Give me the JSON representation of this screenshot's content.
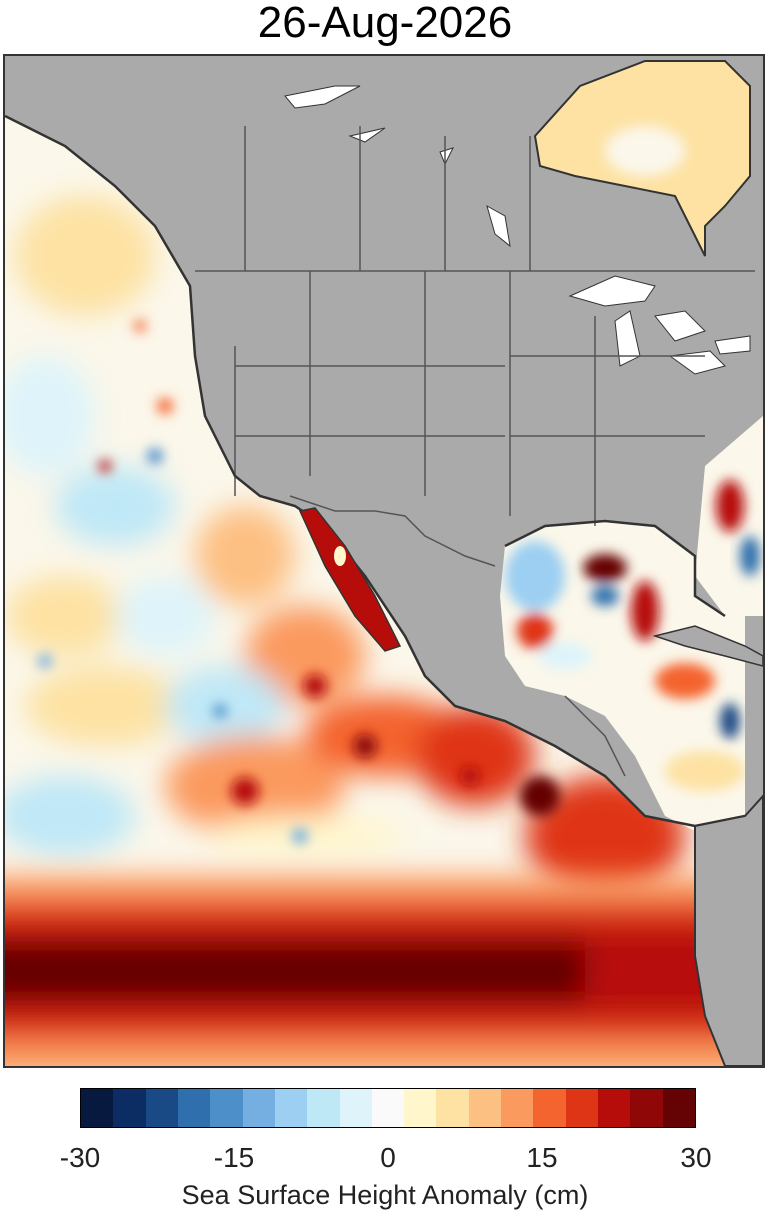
{
  "title": "26-Aug-2026",
  "map": {
    "land_color": "#aaaaaa",
    "border_color": "#555555",
    "lake_color": "#ffffff"
  },
  "colorbar": {
    "label": "Sea Surface Height Anomaly (cm)",
    "min": -30,
    "max": 30,
    "ticks": [
      "-30",
      "-15",
      "0",
      "15",
      "30"
    ],
    "colors": [
      "#08193f",
      "#0b2d63",
      "#1a4a85",
      "#2f6fad",
      "#4d8fc9",
      "#75aee0",
      "#9ccff2",
      "#bfe8f7",
      "#def4fa",
      "#fafafa",
      "#fff6cc",
      "#fde2a3",
      "#fdc083",
      "#fb9a5e",
      "#f4642e",
      "#df3517",
      "#b70d0a",
      "#8f0707",
      "#650204"
    ]
  }
}
